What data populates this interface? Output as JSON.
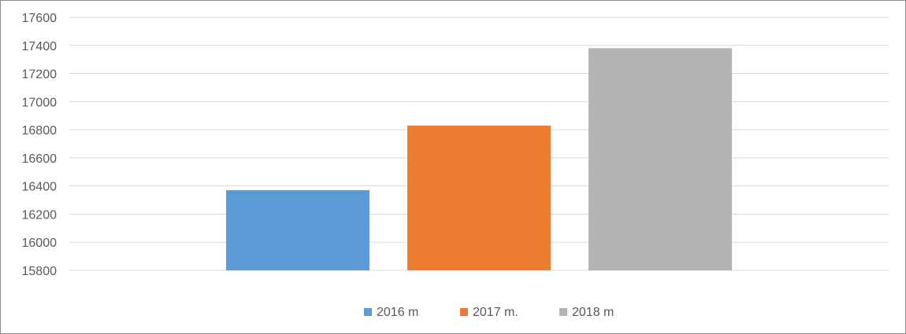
{
  "chart_data": {
    "type": "bar",
    "title": "",
    "xlabel": "",
    "ylabel": "",
    "categories": [
      ""
    ],
    "series": [
      {
        "name": "2016 m",
        "values": [
          16370
        ],
        "color": "#5b9bd5"
      },
      {
        "name": "2017 m.",
        "values": [
          16830
        ],
        "color": "#ed7d31"
      },
      {
        "name": "2018 m",
        "values": [
          17380
        ],
        "color": "#b4b4b4"
      }
    ],
    "ylim": [
      15800,
      17600
    ],
    "yticks": [
      "15800",
      "16000",
      "16200",
      "16400",
      "16600",
      "16800",
      "17000",
      "17200",
      "17400",
      "17600"
    ],
    "grid": true,
    "legend": "bottom"
  }
}
